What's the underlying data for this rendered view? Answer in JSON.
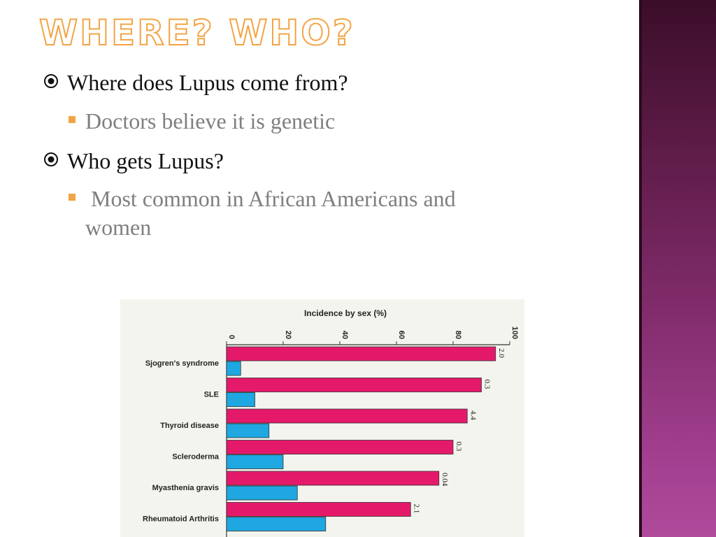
{
  "slide": {
    "title": "WHERE? WHO?",
    "accent_color": "#f2a444",
    "band_color": "#7e2a68",
    "bullets": [
      {
        "level": 1,
        "icon": "target-icon",
        "text": "Where does Lupus come from?"
      },
      {
        "level": 2,
        "icon": "square-icon",
        "text": "Doctors believe it is genetic"
      },
      {
        "level": 1,
        "icon": "target-icon",
        "text": "Who gets Lupus?"
      },
      {
        "level": 2,
        "icon": "square-icon",
        "text": " Most common in African Americans and",
        "continuation": "women"
      }
    ]
  },
  "chart_data": {
    "type": "bar",
    "title": "Incidence by sex (%)",
    "xlim": [
      0,
      100
    ],
    "ticks": [
      "0",
      "20",
      "40",
      "60",
      "80",
      "100"
    ],
    "categories": [
      "Sjogren's syndrome",
      "SLE",
      "Thyroid disease",
      "Scleroderma",
      "Myasthenia gravis",
      "Rheumatoid Arthritis"
    ],
    "series": [
      {
        "color": "#e5196a",
        "values": [
          95,
          90,
          85,
          80,
          75,
          65
        ]
      },
      {
        "color": "#1ea7e0",
        "values": [
          5,
          10,
          15,
          20,
          25,
          35
        ]
      }
    ],
    "ratio_labels": [
      "2.0",
      "0.3",
      "4.4",
      "0.3",
      "0.04",
      "2.1"
    ]
  }
}
